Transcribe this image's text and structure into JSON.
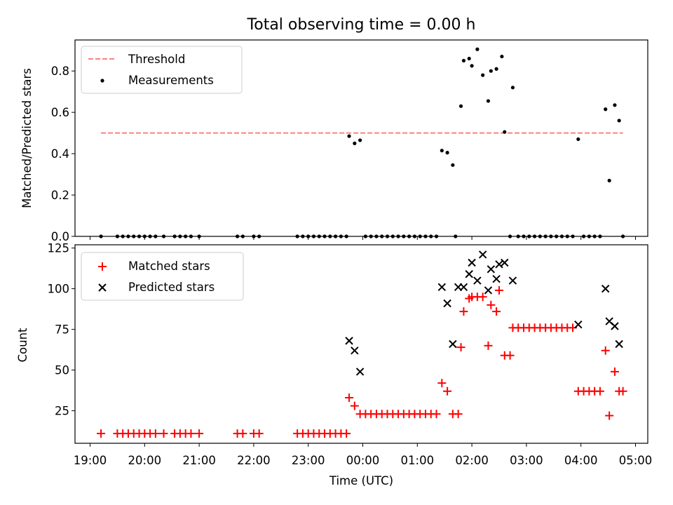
{
  "chart_data": [
    {
      "type": "scatter",
      "title": "Total observing time = 0.00 h",
      "ylabel": "Matched/Predicted stars",
      "ylim": [
        0,
        0.95
      ],
      "yticks": [
        "0.0",
        "0.2",
        "0.4",
        "0.6",
        "0.8"
      ],
      "threshold": {
        "name": "Threshold",
        "value": 0.5,
        "x_range": [
          19.2,
          4.77
        ],
        "color": "#ff7f7f"
      },
      "series": [
        {
          "name": "Measurements",
          "color": "#000000",
          "x": [
            19.2,
            19.5,
            19.6,
            19.7,
            19.8,
            19.9,
            20.0,
            20.1,
            20.2,
            20.35,
            20.55,
            20.65,
            20.75,
            20.85,
            21.0,
            21.7,
            21.8,
            22.0,
            22.1,
            22.8,
            22.9,
            23.0,
            23.1,
            23.2,
            23.3,
            23.4,
            23.5,
            23.6,
            23.7,
            23.75,
            23.85,
            23.95,
            0.05,
            0.15,
            0.25,
            0.35,
            0.45,
            0.55,
            0.65,
            0.75,
            0.85,
            0.95,
            1.05,
            1.15,
            1.25,
            1.35,
            1.45,
            1.55,
            1.65,
            1.7,
            1.8,
            1.85,
            1.95,
            2.0,
            2.1,
            2.2,
            2.3,
            2.35,
            2.45,
            2.55,
            2.6,
            2.7,
            2.75,
            2.85,
            2.95,
            3.05,
            3.15,
            3.25,
            3.35,
            3.45,
            3.55,
            3.65,
            3.75,
            3.85,
            3.95,
            4.05,
            4.15,
            4.25,
            4.35,
            4.45,
            4.52,
            4.62,
            4.7,
            4.77
          ],
          "y": [
            0,
            0,
            0,
            0,
            0,
            0,
            0,
            0,
            0,
            0,
            0,
            0,
            0,
            0,
            0,
            0,
            0,
            0,
            0,
            0,
            0,
            0,
            0,
            0,
            0,
            0,
            0,
            0,
            0,
            0.485,
            0.45,
            0.465,
            0,
            0,
            0,
            0,
            0,
            0,
            0,
            0,
            0,
            0,
            0,
            0,
            0,
            0,
            0.415,
            0.405,
            0.345,
            0,
            0.63,
            0.85,
            0.86,
            0.825,
            0.905,
            0.78,
            0.655,
            0.8,
            0.81,
            0.87,
            0.505,
            0,
            0.72,
            0,
            0,
            0,
            0,
            0,
            0,
            0,
            0,
            0,
            0,
            0,
            0.47,
            0,
            0,
            0,
            0,
            0.615,
            0.27,
            0.635,
            0.56,
            0
          ]
        }
      ],
      "legend": "top-left"
    },
    {
      "type": "scatter",
      "xlabel": "Time (UTC)",
      "ylabel": "Count",
      "ylim": [
        5,
        127
      ],
      "yticks": [
        "25",
        "50",
        "75",
        "100",
        "125"
      ],
      "xticks": [
        "19:00",
        "20:00",
        "21:00",
        "22:00",
        "23:00",
        "00:00",
        "01:00",
        "02:00",
        "03:00",
        "04:00",
        "05:00"
      ],
      "series": [
        {
          "name": "Matched stars",
          "marker": "+",
          "color": "#ff0000",
          "x": [
            19.2,
            19.5,
            19.6,
            19.7,
            19.8,
            19.9,
            20.0,
            20.1,
            20.2,
            20.35,
            20.55,
            20.65,
            20.75,
            20.85,
            21.0,
            21.7,
            21.8,
            22.0,
            22.1,
            22.8,
            22.9,
            23.0,
            23.1,
            23.2,
            23.3,
            23.4,
            23.5,
            23.6,
            23.7,
            23.75,
            23.85,
            23.95,
            0.05,
            0.15,
            0.25,
            0.35,
            0.45,
            0.55,
            0.65,
            0.75,
            0.85,
            0.95,
            1.05,
            1.15,
            1.25,
            1.35,
            1.45,
            1.55,
            1.65,
            1.75,
            1.8,
            1.85,
            1.95,
            2.0,
            2.1,
            2.2,
            2.3,
            2.35,
            2.45,
            2.5,
            2.6,
            2.7,
            2.75,
            2.85,
            2.95,
            3.05,
            3.15,
            3.25,
            3.35,
            3.45,
            3.55,
            3.65,
            3.75,
            3.85,
            3.95,
            4.05,
            4.15,
            4.25,
            4.35,
            4.45,
            4.52,
            4.62,
            4.7,
            4.77
          ],
          "y": [
            11,
            11,
            11,
            11,
            11,
            11,
            11,
            11,
            11,
            11,
            11,
            11,
            11,
            11,
            11,
            11,
            11,
            11,
            11,
            11,
            11,
            11,
            11,
            11,
            11,
            11,
            11,
            11,
            11,
            33,
            28,
            23,
            23,
            23,
            23,
            23,
            23,
            23,
            23,
            23,
            23,
            23,
            23,
            23,
            23,
            23,
            42,
            37,
            23,
            23,
            64,
            86,
            94,
            95,
            95,
            95,
            65,
            90,
            86,
            99,
            59,
            59,
            76,
            76,
            76,
            76,
            76,
            76,
            76,
            76,
            76,
            76,
            76,
            76,
            37,
            37,
            37,
            37,
            37,
            62,
            22,
            49,
            37,
            37
          ]
        },
        {
          "name": "Predicted stars",
          "marker": "x",
          "color": "#000000",
          "x": [
            23.75,
            23.85,
            23.95,
            1.45,
            1.55,
            1.65,
            1.75,
            1.85,
            1.95,
            2.0,
            2.1,
            2.2,
            2.3,
            2.35,
            2.45,
            2.5,
            2.6,
            2.75,
            3.95,
            4.45,
            4.52,
            4.62,
            4.7
          ],
          "y": [
            68,
            62,
            49,
            101,
            91,
            66,
            101,
            101,
            109,
            116,
            105,
            121,
            99,
            112,
            106,
            115,
            116,
            105,
            78,
            100,
            80,
            77,
            66
          ]
        }
      ],
      "legend": "top-left"
    }
  ]
}
